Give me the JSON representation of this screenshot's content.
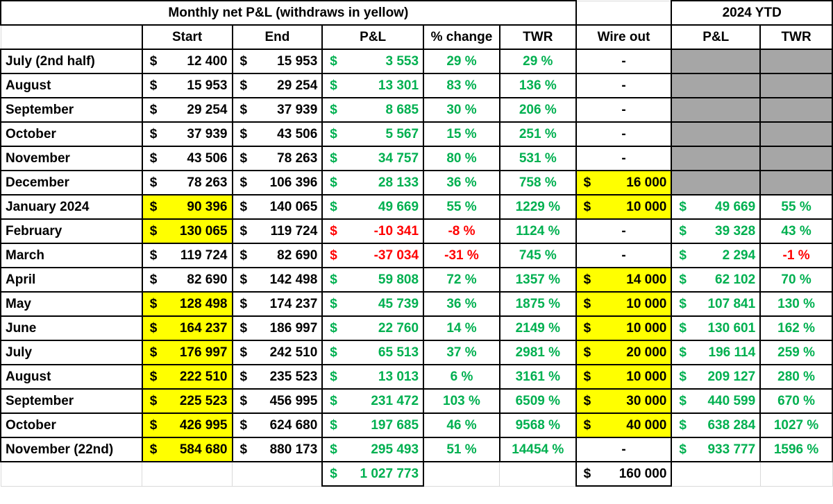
{
  "header": {
    "monthly_title": "Monthly net P&L (withdraws in yellow)",
    "ytd_title": "2024 YTD",
    "cols": [
      "Start",
      "End",
      "P&L",
      "% change",
      "TWR",
      "Wire out",
      "P&L",
      "TWR"
    ]
  },
  "currency": "$",
  "dash": "-",
  "rows": [
    {
      "month": "July (2nd half)",
      "start": "12 400",
      "start_hl": false,
      "end": "15 953",
      "pl": "3 553",
      "pl_neg": false,
      "pct": "29 %",
      "pct_neg": false,
      "twr": "29 %",
      "wire": "-",
      "ytd_pl": "",
      "ytd_twr": "",
      "ytd_neg": false,
      "ytd_gray": true
    },
    {
      "month": "August",
      "start": "15 953",
      "start_hl": false,
      "end": "29 254",
      "pl": "13 301",
      "pl_neg": false,
      "pct": "83 %",
      "pct_neg": false,
      "twr": "136 %",
      "wire": "-",
      "ytd_pl": "",
      "ytd_twr": "",
      "ytd_neg": false,
      "ytd_gray": true
    },
    {
      "month": "September",
      "start": "29 254",
      "start_hl": false,
      "end": "37 939",
      "pl": "8 685",
      "pl_neg": false,
      "pct": "30 %",
      "pct_neg": false,
      "twr": "206 %",
      "wire": "-",
      "ytd_pl": "",
      "ytd_twr": "",
      "ytd_neg": false,
      "ytd_gray": true
    },
    {
      "month": "October",
      "start": "37 939",
      "start_hl": false,
      "end": "43 506",
      "pl": "5 567",
      "pl_neg": false,
      "pct": "15 %",
      "pct_neg": false,
      "twr": "251 %",
      "wire": "-",
      "ytd_pl": "",
      "ytd_twr": "",
      "ytd_neg": false,
      "ytd_gray": true
    },
    {
      "month": "November",
      "start": "43 506",
      "start_hl": false,
      "end": "78 263",
      "pl": "34 757",
      "pl_neg": false,
      "pct": "80 %",
      "pct_neg": false,
      "twr": "531 %",
      "wire": "-",
      "ytd_pl": "",
      "ytd_twr": "",
      "ytd_neg": false,
      "ytd_gray": true
    },
    {
      "month": "December",
      "start": "78 263",
      "start_hl": false,
      "end": "106 396",
      "pl": "28 133",
      "pl_neg": false,
      "pct": "36 %",
      "pct_neg": false,
      "twr": "758 %",
      "wire": "16 000",
      "ytd_pl": "",
      "ytd_twr": "",
      "ytd_neg": false,
      "ytd_gray": true
    },
    {
      "month": "January 2024",
      "start": "90 396",
      "start_hl": true,
      "end": "140 065",
      "pl": "49 669",
      "pl_neg": false,
      "pct": "55 %",
      "pct_neg": false,
      "twr": "1229 %",
      "wire": "10 000",
      "ytd_pl": "49 669",
      "ytd_twr": "55 %",
      "ytd_neg": false,
      "ytd_gray": false
    },
    {
      "month": "February",
      "start": "130 065",
      "start_hl": true,
      "end": "119 724",
      "pl": "-10 341",
      "pl_neg": true,
      "pct": "-8 %",
      "pct_neg": true,
      "twr": "1124 %",
      "wire": "-",
      "ytd_pl": "39 328",
      "ytd_twr": "43 %",
      "ytd_neg": false,
      "ytd_gray": false
    },
    {
      "month": "March",
      "start": "119 724",
      "start_hl": false,
      "end": "82 690",
      "pl": "-37 034",
      "pl_neg": true,
      "pct": "-31 %",
      "pct_neg": true,
      "twr": "745 %",
      "wire": "-",
      "ytd_pl": "2 294",
      "ytd_twr": "-1 %",
      "ytd_neg": true,
      "ytd_gray": false
    },
    {
      "month": "April",
      "start": "82 690",
      "start_hl": false,
      "end": "142 498",
      "pl": "59 808",
      "pl_neg": false,
      "pct": "72 %",
      "pct_neg": false,
      "twr": "1357 %",
      "wire": "14 000",
      "ytd_pl": "62 102",
      "ytd_twr": "70 %",
      "ytd_neg": false,
      "ytd_gray": false
    },
    {
      "month": "May",
      "start": "128 498",
      "start_hl": true,
      "end": "174 237",
      "pl": "45 739",
      "pl_neg": false,
      "pct": "36 %",
      "pct_neg": false,
      "twr": "1875 %",
      "wire": "10 000",
      "ytd_pl": "107 841",
      "ytd_twr": "130 %",
      "ytd_neg": false,
      "ytd_gray": false
    },
    {
      "month": "June",
      "start": "164 237",
      "start_hl": true,
      "end": "186 997",
      "pl": "22 760",
      "pl_neg": false,
      "pct": "14 %",
      "pct_neg": false,
      "twr": "2149 %",
      "wire": "10 000",
      "ytd_pl": "130 601",
      "ytd_twr": "162 %",
      "ytd_neg": false,
      "ytd_gray": false
    },
    {
      "month": "July",
      "start": "176 997",
      "start_hl": true,
      "end": "242 510",
      "pl": "65 513",
      "pl_neg": false,
      "pct": "37 %",
      "pct_neg": false,
      "twr": "2981 %",
      "wire": "20 000",
      "ytd_pl": "196 114",
      "ytd_twr": "259 %",
      "ytd_neg": false,
      "ytd_gray": false
    },
    {
      "month": "August",
      "start": "222 510",
      "start_hl": true,
      "end": "235 523",
      "pl": "13 013",
      "pl_neg": false,
      "pct": "6 %",
      "pct_neg": false,
      "twr": "3161 %",
      "wire": "10 000",
      "ytd_pl": "209 127",
      "ytd_twr": "280 %",
      "ytd_neg": false,
      "ytd_gray": false
    },
    {
      "month": "September",
      "start": "225 523",
      "start_hl": true,
      "end": "456 995",
      "pl": "231 472",
      "pl_neg": false,
      "pct": "103 %",
      "pct_neg": false,
      "twr": "6509 %",
      "wire": "30 000",
      "ytd_pl": "440 599",
      "ytd_twr": "670 %",
      "ytd_neg": false,
      "ytd_gray": false
    },
    {
      "month": "October",
      "start": "426 995",
      "start_hl": true,
      "end": "624 680",
      "pl": "197 685",
      "pl_neg": false,
      "pct": "46 %",
      "pct_neg": false,
      "twr": "9568 %",
      "wire": "40 000",
      "ytd_pl": "638 284",
      "ytd_twr": "1027 %",
      "ytd_neg": false,
      "ytd_gray": false
    },
    {
      "month": "November (22nd)",
      "start": "584 680",
      "start_hl": true,
      "end": "880 173",
      "pl": "295 493",
      "pl_neg": false,
      "pct": "51 %",
      "pct_neg": false,
      "twr": "14454 %",
      "wire": "-",
      "ytd_pl": "933 777",
      "ytd_twr": "1596 %",
      "ytd_neg": false,
      "ytd_gray": false
    }
  ],
  "totals": {
    "pl": "1 027 773",
    "wire": "160 000"
  },
  "colors": {
    "highlight": "#ffff00",
    "gray": "#a6a6a6",
    "positive": "#00b050",
    "negative": "#ff0000"
  }
}
